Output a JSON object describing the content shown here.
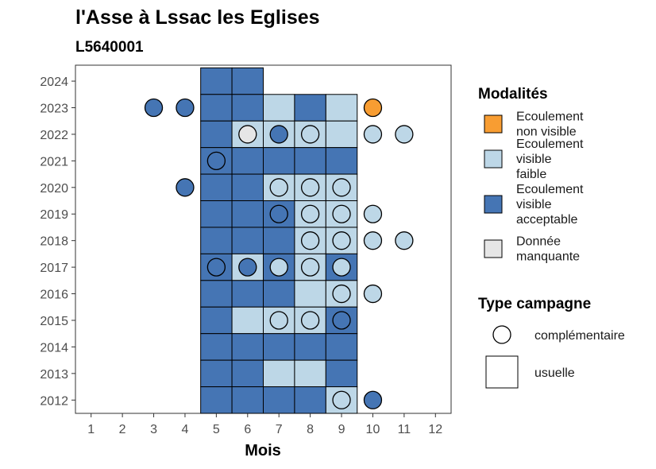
{
  "chart_data": {
    "type": "heatmap",
    "title": "l'Asse à Lssac les Eglises",
    "subtitle": "L5640001",
    "xlabel": "Mois",
    "ylabel": "",
    "x_ticks": [
      1,
      2,
      3,
      4,
      5,
      6,
      7,
      8,
      9,
      10,
      11,
      12
    ],
    "y_ticks": [
      2012,
      2013,
      2014,
      2015,
      2016,
      2017,
      2018,
      2019,
      2020,
      2021,
      2022,
      2023,
      2024
    ],
    "xlim": [
      0.5,
      12.5
    ],
    "ylim": [
      2011.5,
      2024.6
    ],
    "legend_modalites": {
      "title": "Modalités",
      "items": [
        {
          "key": "nv",
          "label_lines": [
            "Ecoulement",
            "non visible"
          ],
          "color": "#F89D32"
        },
        {
          "key": "vf",
          "label_lines": [
            "Ecoulement",
            "visible",
            "faible"
          ],
          "color": "#BDD7E7"
        },
        {
          "key": "va",
          "label_lines": [
            "Ecoulement",
            "visible",
            "acceptable"
          ],
          "color": "#4575B4"
        },
        {
          "key": "dm",
          "label_lines": [
            "Donnée",
            "manquante"
          ],
          "color": "#E6E6E6"
        }
      ]
    },
    "legend_campagne": {
      "title": "Type campagne",
      "items": [
        {
          "key": "complementaire",
          "label": "complémentaire",
          "shape": "circle"
        },
        {
          "key": "usuelle",
          "label": "usuelle",
          "shape": "square"
        }
      ]
    },
    "usuelle": [
      {
        "year": 2024,
        "month": 5,
        "mod": "va"
      },
      {
        "year": 2024,
        "month": 6,
        "mod": "va"
      },
      {
        "year": 2023,
        "month": 5,
        "mod": "va"
      },
      {
        "year": 2023,
        "month": 6,
        "mod": "va"
      },
      {
        "year": 2023,
        "month": 7,
        "mod": "vf"
      },
      {
        "year": 2023,
        "month": 8,
        "mod": "va"
      },
      {
        "year": 2023,
        "month": 9,
        "mod": "vf"
      },
      {
        "year": 2022,
        "month": 5,
        "mod": "va"
      },
      {
        "year": 2022,
        "month": 6,
        "mod": "vf"
      },
      {
        "year": 2022,
        "month": 7,
        "mod": "vf"
      },
      {
        "year": 2022,
        "month": 8,
        "mod": "vf"
      },
      {
        "year": 2022,
        "month": 9,
        "mod": "vf"
      },
      {
        "year": 2021,
        "month": 5,
        "mod": "va"
      },
      {
        "year": 2021,
        "month": 6,
        "mod": "va"
      },
      {
        "year": 2021,
        "month": 7,
        "mod": "va"
      },
      {
        "year": 2021,
        "month": 8,
        "mod": "va"
      },
      {
        "year": 2021,
        "month": 9,
        "mod": "va"
      },
      {
        "year": 2020,
        "month": 5,
        "mod": "va"
      },
      {
        "year": 2020,
        "month": 6,
        "mod": "va"
      },
      {
        "year": 2020,
        "month": 7,
        "mod": "vf"
      },
      {
        "year": 2020,
        "month": 8,
        "mod": "vf"
      },
      {
        "year": 2020,
        "month": 9,
        "mod": "vf"
      },
      {
        "year": 2019,
        "month": 5,
        "mod": "va"
      },
      {
        "year": 2019,
        "month": 6,
        "mod": "va"
      },
      {
        "year": 2019,
        "month": 7,
        "mod": "va"
      },
      {
        "year": 2019,
        "month": 8,
        "mod": "vf"
      },
      {
        "year": 2019,
        "month": 9,
        "mod": "vf"
      },
      {
        "year": 2018,
        "month": 5,
        "mod": "va"
      },
      {
        "year": 2018,
        "month": 6,
        "mod": "va"
      },
      {
        "year": 2018,
        "month": 7,
        "mod": "va"
      },
      {
        "year": 2018,
        "month": 8,
        "mod": "vf"
      },
      {
        "year": 2018,
        "month": 9,
        "mod": "vf"
      },
      {
        "year": 2017,
        "month": 5,
        "mod": "va"
      },
      {
        "year": 2017,
        "month": 6,
        "mod": "vf"
      },
      {
        "year": 2017,
        "month": 7,
        "mod": "va"
      },
      {
        "year": 2017,
        "month": 8,
        "mod": "vf"
      },
      {
        "year": 2017,
        "month": 9,
        "mod": "va"
      },
      {
        "year": 2016,
        "month": 5,
        "mod": "va"
      },
      {
        "year": 2016,
        "month": 6,
        "mod": "va"
      },
      {
        "year": 2016,
        "month": 7,
        "mod": "va"
      },
      {
        "year": 2016,
        "month": 8,
        "mod": "vf"
      },
      {
        "year": 2016,
        "month": 9,
        "mod": "vf"
      },
      {
        "year": 2015,
        "month": 5,
        "mod": "va"
      },
      {
        "year": 2015,
        "month": 6,
        "mod": "vf"
      },
      {
        "year": 2015,
        "month": 7,
        "mod": "vf"
      },
      {
        "year": 2015,
        "month": 8,
        "mod": "vf"
      },
      {
        "year": 2015,
        "month": 9,
        "mod": "va"
      },
      {
        "year": 2014,
        "month": 5,
        "mod": "va"
      },
      {
        "year": 2014,
        "month": 6,
        "mod": "va"
      },
      {
        "year": 2014,
        "month": 7,
        "mod": "va"
      },
      {
        "year": 2014,
        "month": 8,
        "mod": "va"
      },
      {
        "year": 2014,
        "month": 9,
        "mod": "va"
      },
      {
        "year": 2013,
        "month": 5,
        "mod": "va"
      },
      {
        "year": 2013,
        "month": 6,
        "mod": "va"
      },
      {
        "year": 2013,
        "month": 7,
        "mod": "vf"
      },
      {
        "year": 2013,
        "month": 8,
        "mod": "vf"
      },
      {
        "year": 2013,
        "month": 9,
        "mod": "va"
      },
      {
        "year": 2012,
        "month": 5,
        "mod": "va"
      },
      {
        "year": 2012,
        "month": 6,
        "mod": "va"
      },
      {
        "year": 2012,
        "month": 7,
        "mod": "va"
      },
      {
        "year": 2012,
        "month": 8,
        "mod": "va"
      },
      {
        "year": 2012,
        "month": 9,
        "mod": "vf"
      }
    ],
    "complementaire": [
      {
        "year": 2023,
        "month": 3,
        "mod": "va"
      },
      {
        "year": 2023,
        "month": 4,
        "mod": "va"
      },
      {
        "year": 2023,
        "month": 10,
        "mod": "nv"
      },
      {
        "year": 2022,
        "month": 6,
        "mod": "dm"
      },
      {
        "year": 2022,
        "month": 7,
        "mod": "va"
      },
      {
        "year": 2022,
        "month": 8,
        "mod": "vf"
      },
      {
        "year": 2022,
        "month": 10,
        "mod": "vf"
      },
      {
        "year": 2022,
        "month": 11,
        "mod": "vf"
      },
      {
        "year": 2021,
        "month": 5,
        "mod": "va"
      },
      {
        "year": 2020,
        "month": 4,
        "mod": "va"
      },
      {
        "year": 2020,
        "month": 7,
        "mod": "vf"
      },
      {
        "year": 2020,
        "month": 8,
        "mod": "vf"
      },
      {
        "year": 2020,
        "month": 9,
        "mod": "vf"
      },
      {
        "year": 2019,
        "month": 7,
        "mod": "va"
      },
      {
        "year": 2019,
        "month": 8,
        "mod": "vf"
      },
      {
        "year": 2019,
        "month": 9,
        "mod": "vf"
      },
      {
        "year": 2019,
        "month": 10,
        "mod": "vf"
      },
      {
        "year": 2018,
        "month": 8,
        "mod": "vf"
      },
      {
        "year": 2018,
        "month": 9,
        "mod": "vf"
      },
      {
        "year": 2018,
        "month": 10,
        "mod": "vf"
      },
      {
        "year": 2018,
        "month": 11,
        "mod": "vf"
      },
      {
        "year": 2017,
        "month": 5,
        "mod": "va"
      },
      {
        "year": 2017,
        "month": 6,
        "mod": "va"
      },
      {
        "year": 2017,
        "month": 7,
        "mod": "vf"
      },
      {
        "year": 2017,
        "month": 8,
        "mod": "vf"
      },
      {
        "year": 2017,
        "month": 9,
        "mod": "vf"
      },
      {
        "year": 2016,
        "month": 9,
        "mod": "vf"
      },
      {
        "year": 2016,
        "month": 10,
        "mod": "vf"
      },
      {
        "year": 2015,
        "month": 7,
        "mod": "vf"
      },
      {
        "year": 2015,
        "month": 8,
        "mod": "vf"
      },
      {
        "year": 2015,
        "month": 9,
        "mod": "va"
      },
      {
        "year": 2012,
        "month": 9,
        "mod": "vf"
      },
      {
        "year": 2012,
        "month": 10,
        "mod": "va"
      }
    ]
  }
}
